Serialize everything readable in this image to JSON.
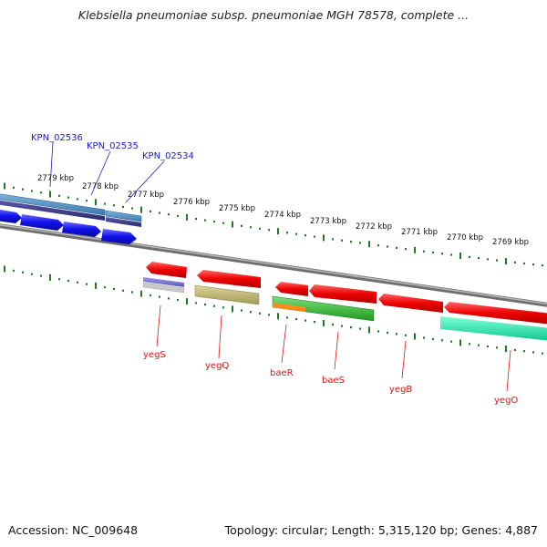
{
  "title": "Klebsiella pneumoniae subsp. pneumoniae MGH 78578, complete ...",
  "footer": {
    "accession": "Accession: NC_009648",
    "summary": "Topology: circular; Length: 5,315,120 bp; Genes: 4,887"
  },
  "scale": {
    "unit": "kbp",
    "labels": [
      "2779 kbp",
      "2778 kbp",
      "2777 kbp",
      "2776 kbp",
      "2775 kbp",
      "2774 kbp",
      "2773 kbp",
      "2772 kbp",
      "2771 kbp",
      "2770 kbp",
      "2769 kbp"
    ]
  },
  "colors": {
    "forward_label": "#1a1acc",
    "reverse_label": "#dd1111",
    "backbone": "#8a8a8a",
    "tick": "#1e7a1e"
  },
  "genes_top": [
    {
      "label": "KPN_02536"
    },
    {
      "label": "KPN_02535"
    },
    {
      "label": "KPN_02534"
    }
  ],
  "genes_bottom": [
    {
      "label": "yegS"
    },
    {
      "label": "yegQ"
    },
    {
      "label": "baeR"
    },
    {
      "label": "baeS"
    },
    {
      "label": "yegB"
    },
    {
      "label": "yegO"
    }
  ]
}
